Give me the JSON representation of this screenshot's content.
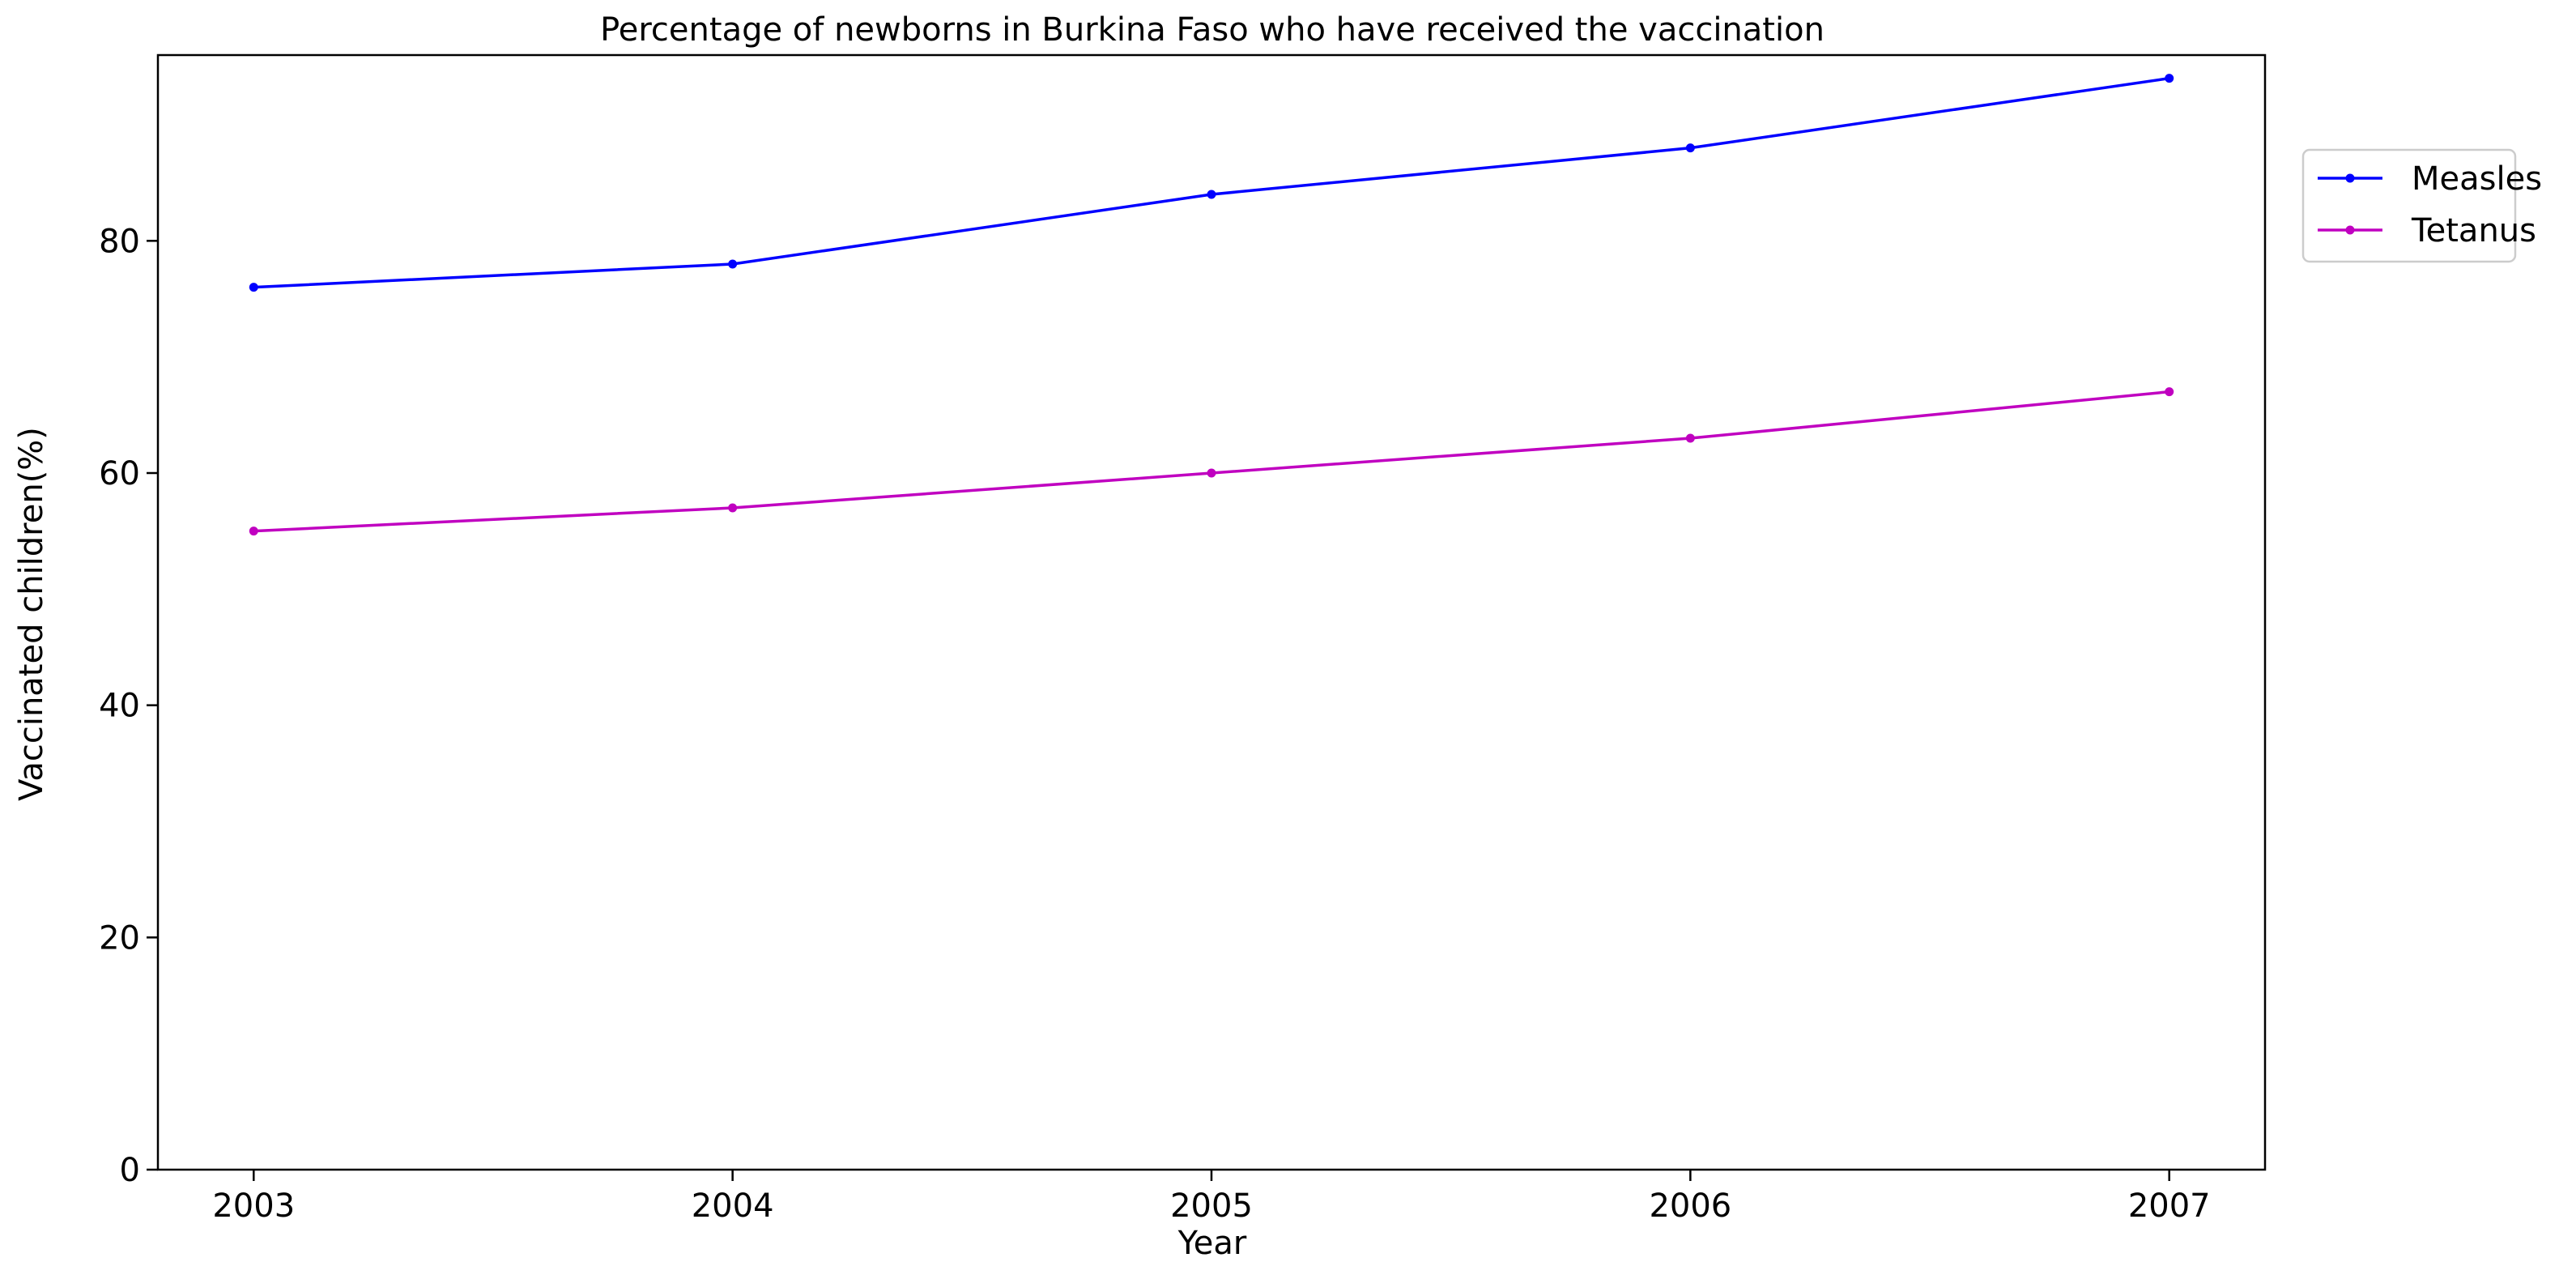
{
  "chart_data": {
    "type": "line",
    "title": "Percentage of newborns in Burkina Faso who have received the vaccination",
    "xlabel": "Year",
    "ylabel": "Vaccinated children(%)",
    "x": [
      2003,
      2004,
      2005,
      2006,
      2007
    ],
    "x_tick_labels": [
      "2003",
      "2004",
      "2005",
      "2006",
      "2007"
    ],
    "y_ticks": [
      0,
      20,
      40,
      60,
      80
    ],
    "y_tick_labels": [
      "0",
      "20",
      "40",
      "60",
      "80"
    ],
    "xlim": [
      2002.8,
      2007.2
    ],
    "ylim": [
      0,
      96
    ],
    "grid": false,
    "legend_position": "upper right, outside plot area",
    "series": [
      {
        "name": "Measles",
        "color": "#0000ff",
        "marker": "dot",
        "values": [
          76,
          78,
          84,
          88,
          94
        ]
      },
      {
        "name": "Tetanus",
        "color": "#c000c0",
        "marker": "dot",
        "values": [
          55,
          57,
          60,
          63,
          67
        ]
      }
    ]
  }
}
